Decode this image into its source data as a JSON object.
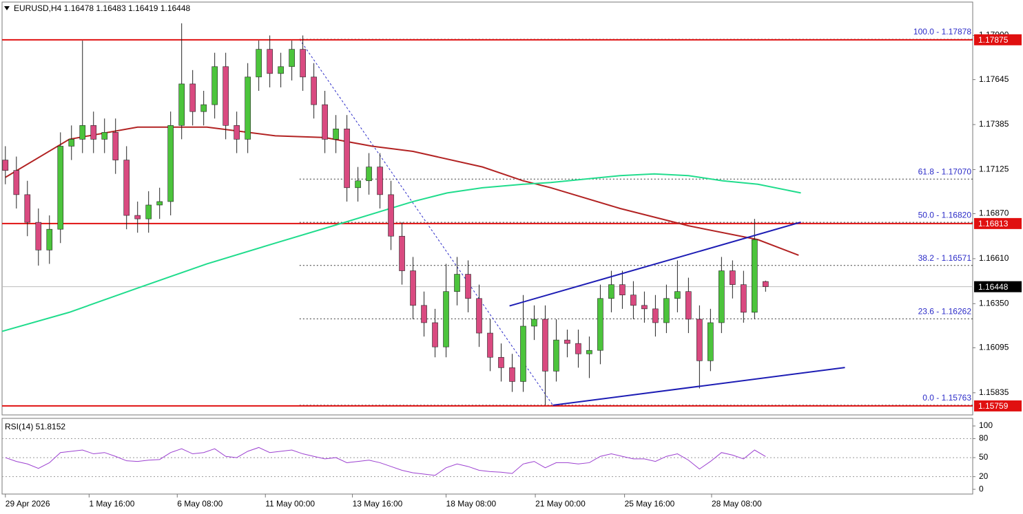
{
  "chart_data": [
    {
      "type": "candlestick",
      "title": "EURUSD,H4  1.16478 1.16483 1.16419 1.16448",
      "xlim": [
        -0.3,
        87.8
      ],
      "ylim": [
        1.15707,
        1.18093
      ],
      "yticks": [
        {
          "value": 1.179,
          "label": "1.17900"
        },
        1.17645,
        1.17385,
        1.17125,
        {
          "value": 1.1687,
          "label": "1.16870"
        },
        {
          "value": 1.1661,
          "label": "1.16610"
        },
        {
          "value": 1.1635,
          "label": "1.16350"
        },
        1.16095,
        1.15835
      ],
      "xticks": [
        {
          "value": 0,
          "label": "29 Apr 2026"
        },
        {
          "value": 7.6,
          "label": "1 May 16:00"
        },
        {
          "value": 15.6,
          "label": "6 May 08:00"
        },
        {
          "value": 23.6,
          "label": "11 May 00:00"
        },
        {
          "value": 31.5,
          "label": "13 May 16:00"
        },
        {
          "value": 40,
          "label": "18 May 08:00"
        },
        {
          "value": 48.1,
          "label": "21 May 00:00"
        },
        {
          "value": 56.2,
          "label": "25 May 16:00"
        },
        {
          "value": 64.1,
          "label": "28 May 08:00"
        }
      ],
      "up_color": "#4cc43c",
      "down_color": "#d94a80",
      "open": [
        1.1718,
        1.1712,
        1.1698,
        1.1682,
        1.1666,
        1.1678,
        1.1726,
        1.173,
        1.1738,
        1.173,
        1.1734,
        1.1718,
        1.1686,
        1.1684,
        1.1692,
        1.1694,
        1.1738,
        1.1762,
        1.1746,
        1.175,
        1.1772,
        1.1738,
        1.173,
        1.1766,
        1.1782,
        1.1768,
        1.1772,
        1.1782,
        1.1766,
        1.175,
        1.173,
        1.1736,
        1.1702,
        1.1706,
        1.1714,
        1.1698,
        1.1674,
        1.1654,
        1.1634,
        1.1624,
        1.161,
        1.1642,
        1.1652,
        1.1638,
        1.1618,
        1.1604,
        1.1598,
        1.159,
        1.1622,
        1.1626,
        1.1596,
        1.1614,
        1.1612,
        1.1606,
        1.1608,
        1.1638,
        1.1646,
        1.164,
        1.1634,
        1.1632,
        1.1624,
        1.1638,
        1.1642,
        1.1626,
        1.1602,
        1.1624,
        1.1654,
        1.1646,
        1.163,
        1.16478
      ],
      "high": [
        1.1726,
        1.172,
        1.1706,
        1.169,
        1.1686,
        1.1734,
        1.1738,
        1.1787,
        1.1746,
        1.1742,
        1.1742,
        1.1726,
        1.1694,
        1.17,
        1.1702,
        1.1746,
        1.1797,
        1.177,
        1.1758,
        1.178,
        1.178,
        1.1746,
        1.1774,
        1.1787,
        1.179,
        1.178,
        1.1787,
        1.179,
        1.1774,
        1.1758,
        1.1744,
        1.1744,
        1.1714,
        1.1722,
        1.1722,
        1.1706,
        1.1682,
        1.1662,
        1.1642,
        1.1632,
        1.1658,
        1.1662,
        1.166,
        1.1646,
        1.1626,
        1.1612,
        1.1606,
        1.164,
        1.1634,
        1.1634,
        1.1626,
        1.162,
        1.162,
        1.1616,
        1.1646,
        1.1654,
        1.1654,
        1.1648,
        1.1642,
        1.164,
        1.1646,
        1.166,
        1.165,
        1.1634,
        1.1632,
        1.1662,
        1.166,
        1.1654,
        1.1684,
        1.16483
      ],
      "low": [
        1.1704,
        1.169,
        1.1674,
        1.1657,
        1.1658,
        1.167,
        1.1718,
        1.1722,
        1.1722,
        1.1722,
        1.171,
        1.1678,
        1.1676,
        1.1676,
        1.1684,
        1.1686,
        1.173,
        1.1738,
        1.1738,
        1.1742,
        1.173,
        1.1722,
        1.1722,
        1.1758,
        1.176,
        1.176,
        1.1764,
        1.1758,
        1.1742,
        1.1722,
        1.1722,
        1.1694,
        1.1694,
        1.1698,
        1.169,
        1.1666,
        1.1646,
        1.1626,
        1.1616,
        1.1604,
        1.1604,
        1.1634,
        1.163,
        1.161,
        1.1596,
        1.159,
        1.1584,
        1.1584,
        1.1614,
        1.15763,
        1.159,
        1.1604,
        1.1598,
        1.1592,
        1.16,
        1.163,
        1.1632,
        1.1626,
        1.1624,
        1.1616,
        1.1618,
        1.163,
        1.1618,
        1.1586,
        1.1596,
        1.1618,
        1.1638,
        1.1624,
        1.1626,
        1.16419
      ],
      "close": [
        1.1712,
        1.1698,
        1.1682,
        1.1666,
        1.1678,
        1.1726,
        1.173,
        1.1738,
        1.173,
        1.1734,
        1.1718,
        1.1686,
        1.1684,
        1.1692,
        1.1694,
        1.1738,
        1.1762,
        1.1746,
        1.175,
        1.1772,
        1.1738,
        1.173,
        1.1766,
        1.1782,
        1.1768,
        1.1772,
        1.1782,
        1.1766,
        1.175,
        1.173,
        1.1736,
        1.1702,
        1.1706,
        1.1714,
        1.1698,
        1.1674,
        1.1654,
        1.1634,
        1.1624,
        1.161,
        1.1642,
        1.1652,
        1.1638,
        1.1618,
        1.1604,
        1.1598,
        1.159,
        1.1622,
        1.1626,
        1.1596,
        1.1614,
        1.1612,
        1.1606,
        1.1608,
        1.1638,
        1.1646,
        1.164,
        1.1634,
        1.1632,
        1.1624,
        1.1638,
        1.1642,
        1.1626,
        1.1602,
        1.1624,
        1.1654,
        1.1646,
        1.163,
        1.1672,
        1.16448
      ],
      "moving_averages": [
        {
          "color": "#b22222",
          "x": [
            0,
            5.8,
            12,
            18.3,
            24.5,
            29,
            33.3,
            37,
            43.3,
            47,
            49.5,
            55.8,
            62,
            68.3,
            72
          ],
          "values": [
            1.1708,
            1.173,
            1.1737,
            1.1737,
            1.1732,
            1.1731,
            1.1726,
            1.1723,
            1.1714,
            1.1706,
            1.1702,
            1.169,
            1.168,
            1.1672,
            1.1663
          ]
        },
        {
          "color": "#1fdc8c",
          "x": [
            -0.3,
            5.8,
            12,
            18.3,
            24.5,
            30.8,
            37,
            40.1,
            43.3,
            47,
            49.5,
            55.8,
            58.9,
            62,
            65.1,
            68.3,
            72.2
          ],
          "values": [
            1.1619,
            1.163,
            1.1644,
            1.1658,
            1.167,
            1.1682,
            1.1694,
            1.1699,
            1.1702,
            1.1704,
            1.1705,
            1.1709,
            1.171,
            1.1709,
            1.1706,
            1.1704,
            1.1699
          ]
        }
      ],
      "trendlines": [
        {
          "color": "#1c1cb4",
          "x": [
            45.76,
            72.2
          ],
          "values": [
            1.16337,
            1.16821
          ]
        },
        {
          "color": "#1c1cb4",
          "x": [
            49.7,
            76.2
          ],
          "values": [
            1.15763,
            1.15981
          ]
        }
      ],
      "fib": {
        "color": "#2b2bc8",
        "x": [
          26.7,
          49.7
        ],
        "values": [
          1.17878,
          1.15763
        ],
        "levels": [
          {
            "value": 1.17878,
            "label": "100.0 - 1.17878"
          },
          {
            "value": 1.1707,
            "label": "61.8 - 1.17070"
          },
          {
            "value": 1.1682,
            "label": "50.0 - 1.16820"
          },
          {
            "value": 1.16571,
            "label": "38.2 - 1.16571"
          },
          {
            "value": 1.16262,
            "label": "23.6 - 1.16262"
          },
          {
            "value": 1.15763,
            "label": "0.0 - 1.15763"
          }
        ]
      },
      "hlines": [
        {
          "value": 1.17875,
          "color": "#e01010"
        },
        {
          "value": 1.16813,
          "color": "#e01010"
        },
        {
          "value": 1.15759,
          "color": "#e01010"
        }
      ],
      "current": {
        "value": 1.16448,
        "color": "#000000"
      }
    },
    {
      "type": "line",
      "title": "RSI(14) 51.8152",
      "xlim": [
        -0.3,
        87.8
      ],
      "ylim": [
        -7.5,
        112
      ],
      "yticks": [
        100,
        80,
        50,
        20,
        0
      ],
      "levels": [
        80,
        50,
        20
      ],
      "series": [
        {
          "color": "#9b3fd0",
          "values": [
            50,
            44,
            40,
            33,
            42,
            58,
            60,
            62,
            56,
            58,
            52,
            45,
            44,
            46,
            47,
            58,
            64,
            56,
            58,
            64,
            52,
            50,
            60,
            66,
            58,
            60,
            62,
            56,
            52,
            48,
            50,
            42,
            44,
            46,
            42,
            36,
            30,
            26,
            24,
            22,
            34,
            40,
            36,
            30,
            28,
            27,
            25,
            40,
            44,
            34,
            42,
            42,
            40,
            42,
            52,
            56,
            52,
            48,
            48,
            44,
            52,
            56,
            46,
            32,
            44,
            58,
            54,
            48,
            62,
            51.8
          ]
        }
      ]
    }
  ]
}
